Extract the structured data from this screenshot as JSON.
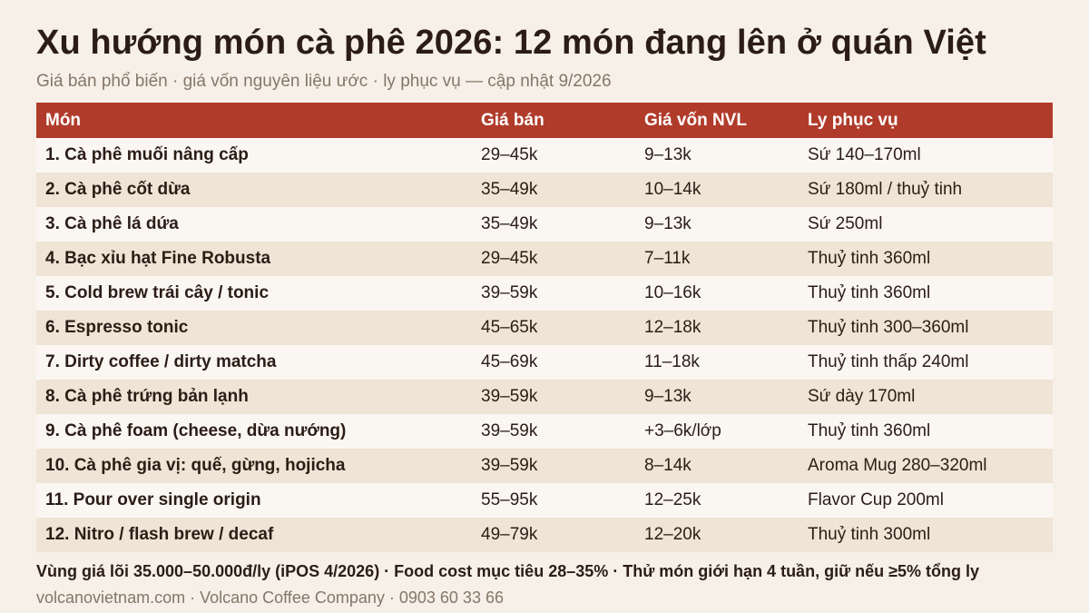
{
  "title": "Xu hướng món cà phê 2026: 12 món đang lên ở quán Việt",
  "subtitle": "Giá bán phổ biến · giá vốn nguyên liệu ước · ly phục vụ — cập nhật 9/2026",
  "table": {
    "headers": [
      "Món",
      "Giá bán",
      "Giá vốn NVL",
      "Ly phục vụ"
    ],
    "rows": [
      [
        "1. Cà phê muối nâng cấp",
        "29–45k",
        "9–13k",
        "Sứ 140–170ml"
      ],
      [
        "2. Cà phê cốt dừa",
        "35–49k",
        "10–14k",
        "Sứ 180ml / thuỷ tinh"
      ],
      [
        "3. Cà phê lá dứa",
        "35–49k",
        "9–13k",
        "Sứ 250ml"
      ],
      [
        "4. Bạc xỉu hạt Fine Robusta",
        "29–45k",
        "7–11k",
        "Thuỷ tinh 360ml"
      ],
      [
        "5. Cold brew trái cây / tonic",
        "39–59k",
        "10–16k",
        "Thuỷ tinh 360ml"
      ],
      [
        "6. Espresso tonic",
        "45–65k",
        "12–18k",
        "Thuỷ tinh 300–360ml"
      ],
      [
        "7. Dirty coffee / dirty matcha",
        "45–69k",
        "11–18k",
        "Thuỷ tinh thấp 240ml"
      ],
      [
        "8. Cà phê trứng bản lạnh",
        "39–59k",
        "9–13k",
        "Sứ dày 170ml"
      ],
      [
        "9. Cà phê foam (cheese, dừa nướng)",
        "39–59k",
        "+3–6k/lớp",
        "Thuỷ tinh 360ml"
      ],
      [
        "10. Cà phê gia vị: quế, gừng, hojicha",
        "39–59k",
        "8–14k",
        "Aroma Mug 280–320ml"
      ],
      [
        "11. Pour over single origin",
        "55–95k",
        "12–25k",
        "Flavor Cup 200ml"
      ],
      [
        "12. Nitro / flash brew / decaf",
        "49–79k",
        "12–20k",
        "Thuỷ tinh 300ml"
      ]
    ]
  },
  "footnote": "Vùng giá lõi 35.000–50.000đ/ly (iPOS 4/2026) · Food cost mục tiêu 28–35% · Thử món giới hạn 4 tuần, giữ nếu ≥5% tổng ly",
  "footer": "volcanovietnam.com · Volcano Coffee Company · 0903 60 33 66",
  "colors": {
    "header_bg": "#b13b2b",
    "row_odd": "#faf6f1",
    "row_even": "#efe4d5",
    "page_bg": "#f6f0e8"
  }
}
